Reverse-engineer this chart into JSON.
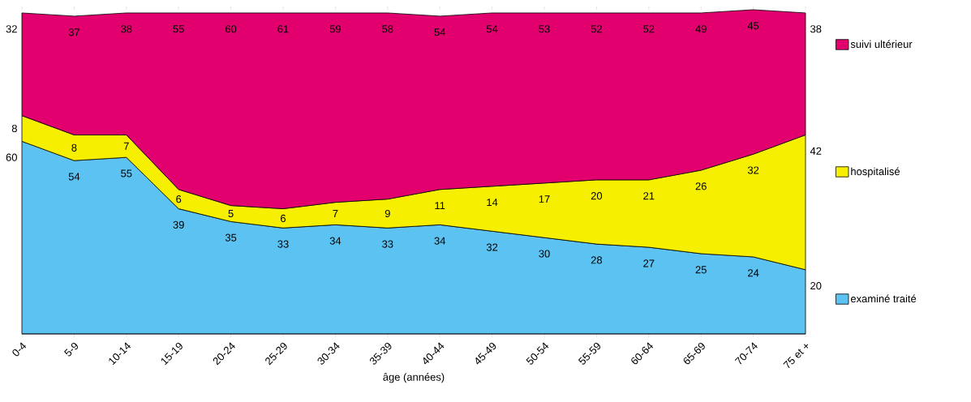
{
  "chart_data": {
    "type": "area",
    "stacked": true,
    "xlabel": "âge (années)",
    "categories": [
      "0-4",
      "5-9",
      "10-14",
      "15-19",
      "20-24",
      "25-29",
      "30-34",
      "35-39",
      "40-44",
      "45-49",
      "50-54",
      "55-59",
      "60-64",
      "65-69",
      "70-74",
      "75 et +"
    ],
    "series": [
      {
        "name": "examiné traité",
        "color": "#5bc2f1",
        "values": [
          60,
          54,
          55,
          39,
          35,
          33,
          34,
          33,
          34,
          32,
          30,
          28,
          27,
          25,
          24,
          20
        ]
      },
      {
        "name": "hospitalisé",
        "color": "#f6f000",
        "values": [
          8,
          8,
          7,
          6,
          5,
          6,
          7,
          9,
          11,
          14,
          17,
          20,
          21,
          26,
          32,
          42
        ]
      },
      {
        "name": "suivi ultérieur",
        "color": "#e2006e",
        "values": [
          32,
          37,
          38,
          55,
          60,
          61,
          59,
          58,
          54,
          54,
          53,
          52,
          52,
          49,
          45,
          38
        ]
      }
    ],
    "data_labels": true,
    "legend": "right",
    "grid": false
  }
}
